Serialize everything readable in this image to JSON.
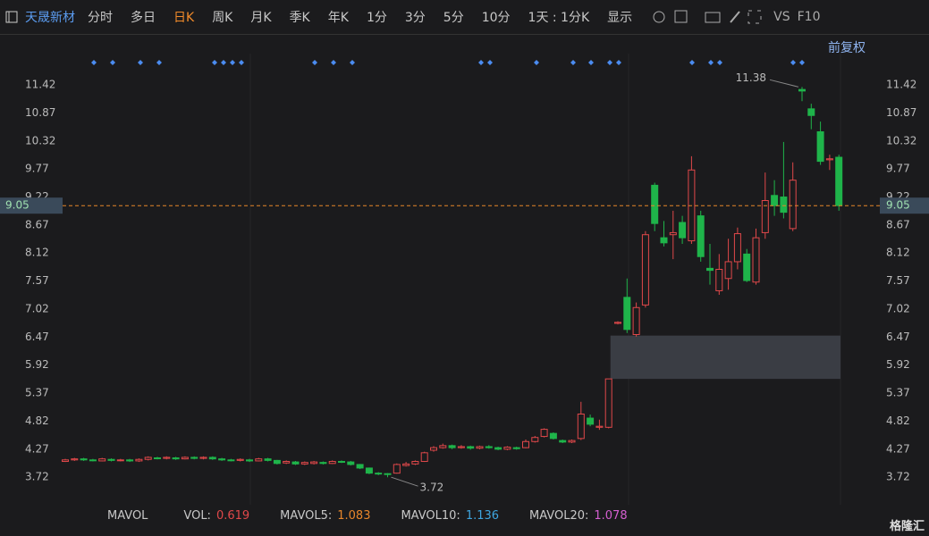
{
  "toolbar": {
    "stock_name": "天晟新材",
    "tabs": [
      {
        "label": "分时"
      },
      {
        "label": "多日"
      },
      {
        "label": "日K",
        "active": true
      },
      {
        "label": "周K"
      },
      {
        "label": "月K"
      },
      {
        "label": "季K"
      },
      {
        "label": "年K"
      },
      {
        "label": "1分"
      },
      {
        "label": "3分"
      },
      {
        "label": "5分"
      },
      {
        "label": "10分"
      },
      {
        "label": "1天 : 1分K"
      },
      {
        "label": "显示"
      }
    ],
    "right_items": [
      "VS",
      "F10"
    ],
    "adjust": "前复权"
  },
  "chart_data": {
    "type": "candlestick",
    "up_color": "#e0484a",
    "down_color": "#1fb44a",
    "ylim": [
      3.18,
      12.42
    ],
    "yticks": [
      3.72,
      4.27,
      4.82,
      5.37,
      5.92,
      6.47,
      7.02,
      7.57,
      8.12,
      8.67,
      9.22,
      9.77,
      10.32,
      10.87,
      11.42
    ],
    "current_price": 9.05,
    "gap_zone": {
      "low": 5.65,
      "high": 6.5
    },
    "annotations": {
      "max_label": "11.38",
      "min_label": "3.72"
    },
    "series": {
      "open": [
        4.03,
        4.06,
        4.08,
        4.06,
        4.04,
        4.07,
        4.05,
        4.06,
        4.04,
        4.07,
        4.1,
        4.09,
        4.1,
        4.08,
        4.11,
        4.09,
        4.11,
        4.08,
        4.06,
        4.05,
        4.06,
        4.04,
        4.08,
        4.05,
        4.0,
        4.02,
        3.98,
        3.99,
        4.01,
        3.99,
        4.03,
        4.02,
        3.97,
        3.9,
        3.8,
        3.79,
        3.8,
        3.95,
        3.98,
        4.03,
        4.25,
        4.3,
        4.34,
        4.3,
        4.32,
        4.29,
        4.32,
        4.3,
        4.27,
        4.3,
        4.3,
        4.42,
        4.52,
        4.58,
        4.44,
        4.41,
        4.48,
        4.88,
        4.7,
        4.7,
        6.74,
        7.25,
        6.52,
        7.1,
        9.45,
        8.42,
        8.48,
        8.72,
        8.36,
        8.85,
        7.82,
        7.38,
        7.62,
        7.95,
        8.1,
        7.55,
        8.52,
        9.25,
        9.22,
        8.6,
        11.33,
        10.95,
        10.5,
        9.95,
        10.0
      ],
      "high": [
        4.08,
        4.1,
        4.1,
        4.08,
        4.1,
        4.09,
        4.08,
        4.08,
        4.09,
        4.13,
        4.12,
        4.13,
        4.12,
        4.13,
        4.13,
        4.13,
        4.13,
        4.1,
        4.08,
        4.09,
        4.08,
        4.1,
        4.1,
        4.06,
        4.05,
        4.04,
        4.03,
        4.04,
        4.03,
        4.05,
        4.05,
        4.04,
        3.98,
        3.91,
        3.82,
        3.8,
        3.99,
        4.02,
        4.05,
        4.22,
        4.33,
        4.38,
        4.36,
        4.35,
        4.34,
        4.34,
        4.35,
        4.32,
        4.33,
        4.32,
        4.46,
        4.53,
        4.68,
        4.6,
        4.46,
        4.46,
        5.2,
        4.95,
        4.85,
        5.65,
        6.78,
        7.62,
        7.15,
        8.55,
        9.5,
        8.75,
        8.95,
        8.85,
        10.02,
        8.95,
        8.3,
        8.1,
        8.4,
        8.62,
        8.2,
        8.6,
        9.7,
        9.55,
        10.3,
        9.9,
        11.38,
        11.05,
        10.7,
        10.05,
        10.05
      ],
      "low": [
        4.02,
        4.04,
        4.04,
        4.03,
        4.03,
        4.03,
        4.03,
        4.02,
        4.02,
        4.05,
        4.07,
        4.07,
        4.06,
        4.07,
        4.07,
        4.07,
        4.06,
        4.04,
        4.03,
        4.03,
        4.02,
        4.03,
        4.03,
        3.97,
        3.98,
        3.96,
        3.96,
        3.97,
        3.97,
        3.98,
        4.0,
        3.95,
        3.88,
        3.78,
        3.76,
        3.72,
        3.79,
        3.93,
        3.96,
        4.02,
        4.22,
        4.28,
        4.27,
        4.28,
        4.26,
        4.27,
        4.28,
        4.25,
        4.25,
        4.26,
        4.29,
        4.4,
        4.5,
        4.46,
        4.39,
        4.39,
        4.45,
        4.72,
        4.65,
        4.68,
        6.72,
        6.55,
        6.48,
        7.05,
        8.55,
        8.25,
        8.0,
        8.3,
        8.3,
        7.95,
        7.5,
        7.3,
        7.4,
        7.8,
        7.55,
        7.5,
        8.4,
        8.85,
        8.8,
        8.55,
        11.1,
        10.55,
        9.85,
        9.75,
        8.95
      ],
      "close": [
        4.06,
        4.08,
        4.06,
        4.05,
        4.08,
        4.05,
        4.06,
        4.04,
        4.07,
        4.11,
        4.09,
        4.11,
        4.08,
        4.11,
        4.09,
        4.11,
        4.08,
        4.06,
        4.05,
        4.07,
        4.04,
        4.08,
        4.05,
        3.99,
        4.03,
        3.98,
        4.01,
        4.02,
        3.99,
        4.03,
        4.02,
        3.97,
        3.9,
        3.8,
        3.79,
        3.78,
        3.97,
        3.98,
        4.03,
        4.2,
        4.3,
        4.34,
        4.3,
        4.32,
        4.29,
        4.32,
        4.3,
        4.27,
        4.31,
        4.28,
        4.42,
        4.5,
        4.66,
        4.48,
        4.41,
        4.44,
        4.96,
        4.76,
        4.72,
        5.65,
        6.76,
        6.62,
        7.05,
        8.48,
        8.7,
        8.32,
        8.52,
        8.42,
        9.75,
        8.05,
        7.78,
        7.8,
        7.95,
        8.5,
        7.58,
        8.42,
        9.15,
        9.05,
        8.92,
        9.55,
        11.3,
        10.82,
        9.92,
        9.97,
        9.05
      ]
    }
  },
  "indicators": {
    "name": "MAVOL",
    "items": [
      {
        "label": "VOL:",
        "value": 0.619,
        "color": "#e0484a"
      },
      {
        "label": "MAVOL5:",
        "value": 1.083,
        "color": "#e8862a"
      },
      {
        "label": "MAVOL10:",
        "value": 1.136,
        "color": "#3ea6e0"
      },
      {
        "label": "MAVOL20:",
        "value": 1.078,
        "color": "#d45fd0"
      }
    ]
  },
  "logo": "格隆汇"
}
